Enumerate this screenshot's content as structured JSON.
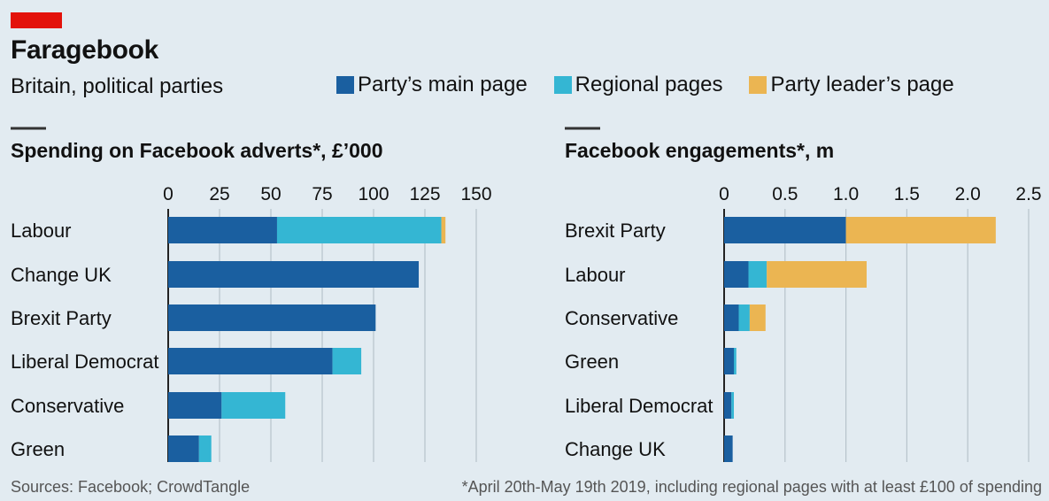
{
  "header": {
    "title": "Faragebook",
    "subtitle": "Britain, political parties"
  },
  "legend": [
    {
      "label": "Party’s main page",
      "color": "#1a5fa0"
    },
    {
      "label": "Regional pages",
      "color": "#34b6d3"
    },
    {
      "label": "Party leader’s page",
      "color": "#ebb552"
    }
  ],
  "footer": {
    "sources": "Sources: Facebook; CrowdTangle",
    "note": "*April 20th-May 19th 2019, including regional pages with at least £100 of spending"
  },
  "chart_data": [
    {
      "type": "bar",
      "orientation": "horizontal",
      "stacked": true,
      "title": "Spending on Facebook adverts*, £’000",
      "categories": [
        "Labour",
        "Change UK",
        "Brexit Party",
        "Liberal Democrat",
        "Conservative",
        "Green"
      ],
      "series": [
        {
          "name": "Party’s main page",
          "values": [
            53,
            122,
            101,
            80,
            26,
            15
          ]
        },
        {
          "name": "Regional pages",
          "values": [
            80,
            0,
            0,
            14,
            31,
            6
          ]
        },
        {
          "name": "Party leader’s page",
          "values": [
            2,
            0,
            0,
            0,
            0,
            0
          ]
        }
      ],
      "xlim": [
        0,
        150
      ],
      "ticks": [
        0,
        25,
        50,
        75,
        100,
        125,
        150
      ],
      "tick_labels": [
        "0",
        "25",
        "50",
        "75",
        "100",
        "125",
        "150"
      ],
      "grid": true,
      "axis_position": "top"
    },
    {
      "type": "bar",
      "orientation": "horizontal",
      "stacked": true,
      "title": "Facebook engagements*, m",
      "categories": [
        "Brexit Party",
        "Labour",
        "Conservative",
        "Green",
        "Liberal Democrat",
        "Change UK"
      ],
      "series": [
        {
          "name": "Party’s main page",
          "values": [
            1.0,
            0.2,
            0.12,
            0.08,
            0.06,
            0.07
          ]
        },
        {
          "name": "Regional pages",
          "values": [
            0.0,
            0.15,
            0.09,
            0.02,
            0.02,
            0.0
          ]
        },
        {
          "name": "Party leader’s page",
          "values": [
            1.23,
            0.82,
            0.13,
            0.0,
            0.0,
            0.0
          ]
        }
      ],
      "xlim": [
        0,
        2.5
      ],
      "ticks": [
        0,
        0.5,
        1.0,
        1.5,
        2.0,
        2.5
      ],
      "tick_labels": [
        "0",
        "0.5",
        "1.0",
        "1.5",
        "2.0",
        "2.5"
      ],
      "grid": true,
      "axis_position": "top"
    }
  ]
}
